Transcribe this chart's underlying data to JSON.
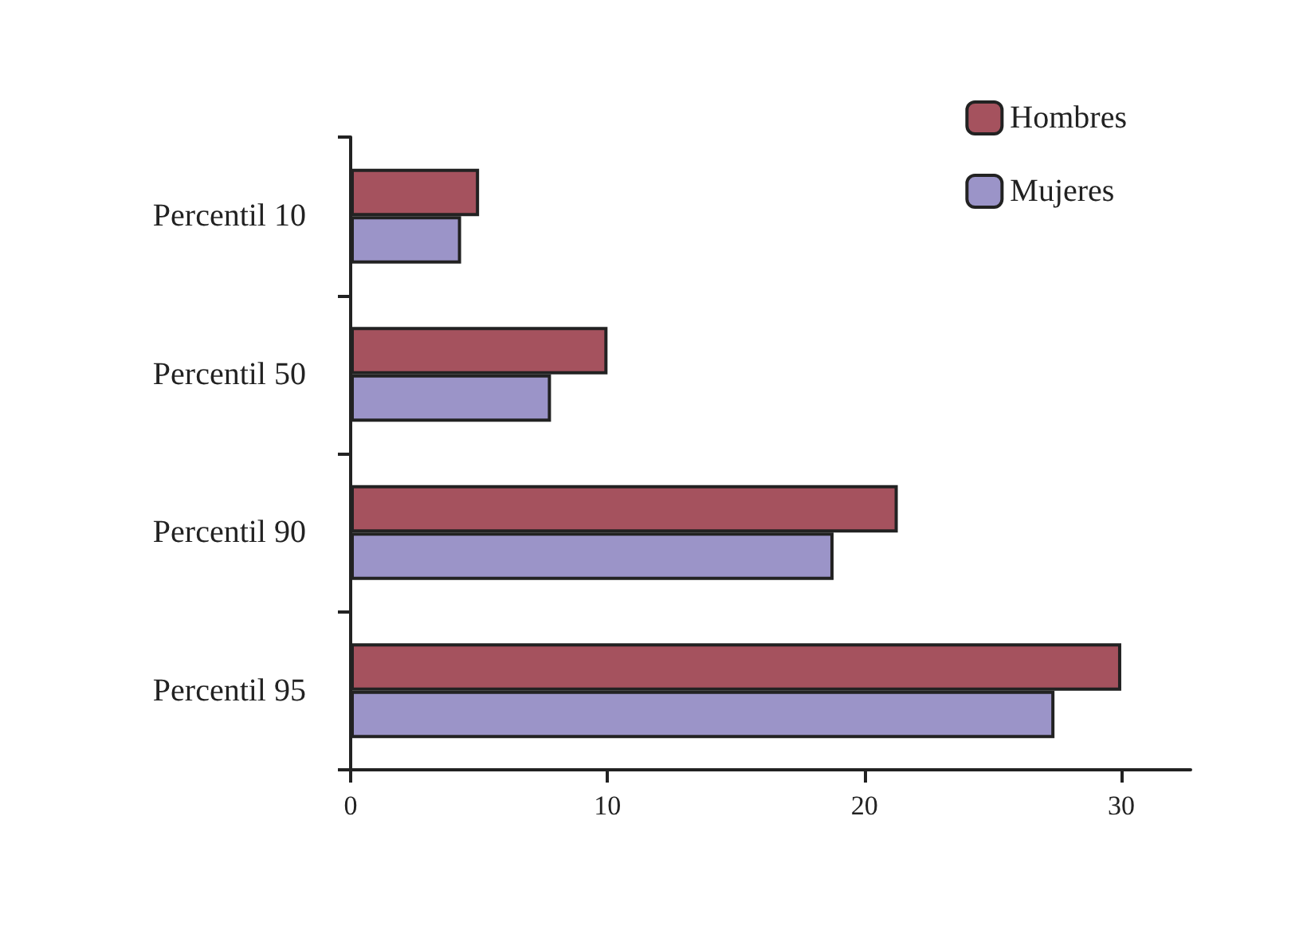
{
  "chart_data": {
    "type": "bar",
    "orientation": "horizontal",
    "categories": [
      "Percentil 10",
      "Percentil 50",
      "Percentil 90",
      "Percentil 95"
    ],
    "series": [
      {
        "name": "Hombres",
        "color": "#a5525e",
        "values": [
          5.0,
          10.0,
          21.3,
          30.0
        ]
      },
      {
        "name": "Mujeres",
        "color": "#9b94c8",
        "values": [
          4.3,
          7.8,
          18.8,
          27.4
        ]
      }
    ],
    "xlim": [
      0,
      32.7
    ],
    "xticks": [
      0,
      10,
      20,
      30
    ],
    "grid": false,
    "legend": "top right"
  }
}
